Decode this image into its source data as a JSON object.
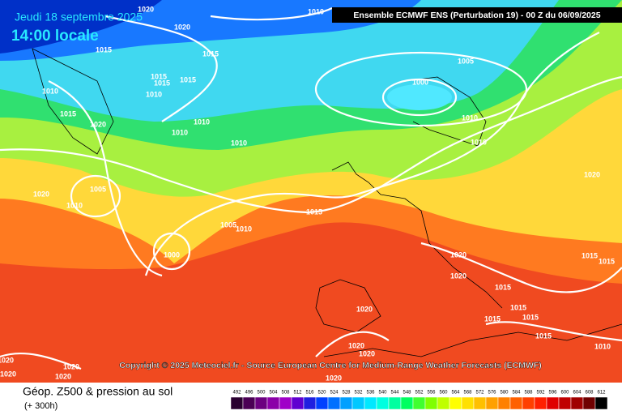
{
  "header": {
    "date": "Jeudi 18 septembre 2025",
    "time": "14:00 locale",
    "model": "Ensemble ECMWF ENS  (Perturbation 19)  -  00 Z du 06/09/2025"
  },
  "copyright": "Copyright © 2025 Meteociel.fr - Source European Centre for Medium-Range Weather Forecasts (ECMWF)",
  "footer": {
    "title": "Géop. Z500 & pression au sol",
    "lead": "(+ 300h)"
  },
  "isobar_labels": [
    1010,
    1020,
    1020,
    1015,
    1015,
    1005,
    1000,
    1015,
    1015,
    1015,
    1010,
    1010,
    1015,
    1020,
    1010,
    1010,
    1010,
    1010,
    1010,
    1020,
    1020,
    1005,
    1010,
    1015,
    1005,
    1010,
    1000,
    1020,
    1020,
    1015,
    1015,
    1015,
    1015,
    1015,
    1015,
    1015,
    1020,
    1020,
    1020,
    1010,
    1020,
    1020,
    1020,
    1020,
    1020
  ],
  "scale": {
    "labels": [
      492,
      496,
      500,
      504,
      508,
      512,
      516,
      520,
      524,
      528,
      532,
      536,
      540,
      544,
      548,
      552,
      556,
      560,
      564,
      568,
      572,
      576,
      580,
      584,
      588,
      592,
      596,
      600,
      604,
      608,
      612
    ],
    "colors": [
      "#2a0030",
      "#4b0055",
      "#6c0080",
      "#8b00a8",
      "#a000c8",
      "#6000d0",
      "#2020e0",
      "#0040ff",
      "#0070ff",
      "#00a0ff",
      "#00c8ff",
      "#00e8ff",
      "#00ffe0",
      "#00ffa0",
      "#00ff60",
      "#40ff30",
      "#80ff00",
      "#c0ff00",
      "#ffff00",
      "#ffe000",
      "#ffc000",
      "#ffa000",
      "#ff8000",
      "#ff6000",
      "#ff4000",
      "#ff2000",
      "#e00000",
      "#c00000",
      "#a00000",
      "#700000",
      "#000000"
    ]
  }
}
